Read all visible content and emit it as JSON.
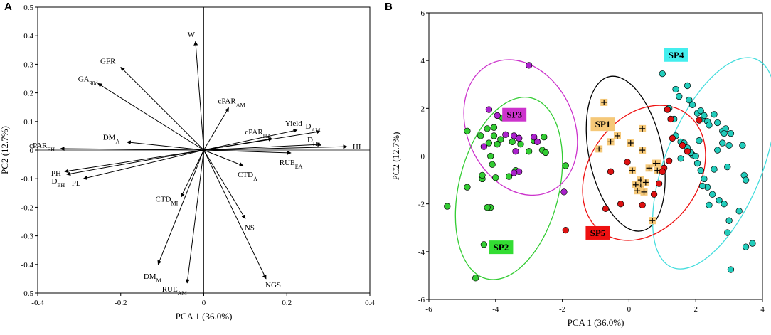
{
  "panels": {
    "a": "A",
    "b": "B"
  },
  "chart_data": [
    {
      "type": "biplot",
      "xlabel": "PCA 1 (36.0%)",
      "ylabel": "PC2 (12.7%)",
      "xlim": [
        -0.4,
        0.4
      ],
      "ylim": [
        -0.5,
        0.5
      ],
      "xticks": [
        -0.4,
        -0.2,
        0,
        0.2,
        0.4
      ],
      "yticks": [
        -0.5,
        -0.4,
        -0.3,
        -0.2,
        -0.1,
        0,
        0.1,
        0.2,
        0.3,
        0.4,
        0.5
      ],
      "xtick_labels": [
        "-0.4",
        "-0.2",
        "0",
        "0.2",
        "0.4"
      ],
      "ytick_labels": [
        "-0.5",
        "-0.4",
        "-0.3",
        "-0.2",
        "-0.1",
        "0",
        "0.1",
        "0.2",
        "0.3",
        "0.4",
        "0.5"
      ],
      "vectors": [
        {
          "base": "W",
          "sub": "",
          "x": -0.02,
          "y": 0.38
        },
        {
          "base": "GFR",
          "sub": "",
          "x": -0.2,
          "y": 0.29
        },
        {
          "base": "GA",
          "sub": "90d",
          "x": -0.255,
          "y": 0.233
        },
        {
          "base": "cPAR",
          "sub": "AM",
          "x": 0.06,
          "y": 0.148
        },
        {
          "base": "cPAR",
          "sub": "HA",
          "x": 0.165,
          "y": 0.04
        },
        {
          "base": "Yield",
          "sub": "",
          "x": 0.225,
          "y": 0.07
        },
        {
          "base": "D",
          "sub": "AM",
          "x": 0.28,
          "y": 0.065
        },
        {
          "base": "D",
          "sub": "HA",
          "x": 0.283,
          "y": 0.02
        },
        {
          "base": "HI",
          "sub": "",
          "x": 0.345,
          "y": 0.012
        },
        {
          "base": "RUE",
          "sub": "EA",
          "x": 0.21,
          "y": -0.01
        },
        {
          "base": "DM",
          "sub": "A",
          "x": -0.185,
          "y": 0.028
        },
        {
          "base": "cPAR",
          "sub": "EH",
          "x": -0.345,
          "y": 0.005
        },
        {
          "base": "PH",
          "sub": "",
          "x": -0.335,
          "y": -0.075
        },
        {
          "base": "D",
          "sub": "EH",
          "x": -0.33,
          "y": -0.085
        },
        {
          "base": "PL",
          "sub": "",
          "x": -0.29,
          "y": -0.1
        },
        {
          "base": "CTD",
          "sub": "A",
          "x": 0.095,
          "y": -0.055
        },
        {
          "base": "CTD",
          "sub": "MI",
          "x": -0.055,
          "y": -0.165
        },
        {
          "base": "NS",
          "sub": "",
          "x": 0.1,
          "y": -0.24
        },
        {
          "base": "DM",
          "sub": "M",
          "x": -0.11,
          "y": -0.4
        },
        {
          "base": "RUE",
          "sub": "AM",
          "x": -0.04,
          "y": -0.465
        },
        {
          "base": "NGS",
          "sub": "",
          "x": 0.15,
          "y": -0.45
        }
      ]
    },
    {
      "type": "scatter",
      "xlabel": "PCA 1 (36.0%)",
      "ylabel": "PC2 (12.7%)",
      "xlim": [
        -6,
        4
      ],
      "ylim": [
        -6,
        6
      ],
      "xticks": [
        -6,
        -4,
        -2,
        0,
        2,
        4
      ],
      "yticks": [
        -6,
        -4,
        -2,
        0,
        2,
        4,
        6
      ],
      "xtick_labels": [
        "-6",
        "-4",
        "-2",
        "0",
        "2",
        "4"
      ],
      "ytick_labels": [
        "-6",
        "-4",
        "-2",
        "0",
        "2",
        "4",
        "6"
      ],
      "groups": [
        {
          "name": "SP1",
          "color": "#f5c878",
          "label_bg": "#f5c878",
          "ellipse_color": "#000000",
          "marker": "plus-square",
          "ellipse": {
            "cx": -0.1,
            "cy": 0.1,
            "rx": 1.1,
            "ry": 3.3,
            "angle_deg": -12
          },
          "label_pos": [
            -1.15,
            1.35
          ],
          "x": [
            -0.75,
            -0.9,
            -0.35,
            -0.55,
            0.05,
            0.4,
            0.4,
            0.35,
            0.1,
            0.35,
            0.5,
            0.2,
            0.25,
            0.45,
            0.6,
            0.85,
            0.85,
            0.7,
            0.8
          ],
          "y": [
            2.25,
            0.3,
            0.85,
            0.6,
            0.55,
            1.15,
            0.25,
            -1.0,
            -0.6,
            -1.25,
            -1.1,
            -1.2,
            -1.45,
            -1.5,
            -0.5,
            -0.3,
            -0.6,
            -2.7,
            -0.3
          ]
        },
        {
          "name": "SP2",
          "color": "#33cc33",
          "label_bg": "#33dd33",
          "ellipse_color": "#33cc33",
          "marker": "circle",
          "ellipse": {
            "cx": -3.6,
            "cy": -1.35,
            "rx": 1.5,
            "ry": 3.9,
            "angle_deg": 14
          },
          "label_pos": [
            -4.2,
            -3.8
          ],
          "x": [
            -5.45,
            -4.85,
            -4.85,
            -4.45,
            -4.4,
            -4.1,
            -4.2,
            -4.15,
            -4.05,
            -4.25,
            -3.95,
            -3.8,
            -3.45,
            -3.5,
            -3.3,
            -3.0,
            -2.85,
            -2.55,
            -2.6,
            -2.5,
            -1.9,
            -4.0,
            -3.6,
            -3.4,
            -3.25,
            -4.35,
            -4.15,
            -4.25,
            -4.4,
            -4.6,
            -4.05,
            -3.85
          ],
          "y": [
            -2.1,
            1.05,
            -1.3,
            0.85,
            -0.95,
            -0.35,
            0.55,
            0.0,
            0.85,
            1.15,
            0.5,
            1.6,
            1.75,
            0.6,
            0.75,
            0.2,
            0.65,
            0.8,
            0.25,
            0.15,
            -0.4,
            -0.9,
            -0.85,
            -0.6,
            0.5,
            -3.7,
            -2.15,
            -2.15,
            -0.8,
            -5.1,
            1.2,
            0.7
          ]
        },
        {
          "name": "SP3",
          "color": "#aa22cc",
          "label_bg": "#cc33cc",
          "ellipse_color": "#cc33cc",
          "marker": "circle",
          "ellipse": {
            "cx": -3.25,
            "cy": 1.2,
            "rx": 1.6,
            "ry": 2.95,
            "angle_deg": -25
          },
          "label_pos": [
            -3.8,
            1.75
          ],
          "x": [
            -3.0,
            -4.2,
            -3.95,
            -3.45,
            -3.3,
            -3.7,
            -4.35,
            -3.4,
            -3.3,
            -2.75,
            -2.85,
            -3.45,
            -1.95
          ],
          "y": [
            3.8,
            1.95,
            1.7,
            0.85,
            0.75,
            0.9,
            0.4,
            0.2,
            -0.65,
            0.6,
            0.8,
            -0.7,
            -1.5
          ]
        },
        {
          "name": "SP4",
          "color": "#22ccbb",
          "label_bg": "#44eeee",
          "ellipse_color": "#44dddd",
          "marker": "circle",
          "ellipse": {
            "cx": 2.55,
            "cy": -0.3,
            "rx": 1.45,
            "ry": 4.7,
            "angle_deg": 22
          },
          "label_pos": [
            1.05,
            4.25
          ],
          "x": [
            1.0,
            1.4,
            1.5,
            1.75,
            1.8,
            1.9,
            2.05,
            2.15,
            2.2,
            2.25,
            2.35,
            2.4,
            2.55,
            2.65,
            2.8,
            2.9,
            3.0,
            3.05,
            3.4,
            3.45,
            3.5,
            3.7,
            3.5,
            3.3,
            3.0,
            2.95,
            2.85,
            2.7,
            2.5,
            2.35,
            2.25,
            2.15,
            2.05,
            1.9,
            1.75,
            1.55,
            1.4,
            1.35,
            1.55,
            1.65,
            1.85,
            2.0,
            2.2,
            2.4,
            2.55,
            2.65,
            2.8,
            2.85,
            2.95,
            3.05,
            1.2,
            2.1
          ],
          "y": [
            3.45,
            2.8,
            2.5,
            2.95,
            2.35,
            2.15,
            1.8,
            1.9,
            1.55,
            1.7,
            1.45,
            1.3,
            1.75,
            1.4,
            1.05,
            1.15,
            0.45,
            0.95,
            0.45,
            -0.8,
            -1.0,
            -3.65,
            -3.8,
            -2.3,
            -2.7,
            -3.2,
            -2.0,
            -1.85,
            -1.6,
            -1.3,
            -0.95,
            -0.6,
            -0.3,
            0.05,
            0.35,
            0.6,
            0.85,
            1.55,
            -0.1,
            0.55,
            0.15,
            0.0,
            -1.25,
            -2.05,
            -0.55,
            0.25,
            0.55,
            0.95,
            -0.45,
            -4.75,
            2.0,
            0.65
          ]
        },
        {
          "name": "SP5",
          "color": "#dd1111",
          "label_bg": "#ee1111",
          "ellipse_color": "#ee1111",
          "marker": "circle",
          "ellipse": {
            "cx": 0.45,
            "cy": -0.7,
            "rx": 1.65,
            "ry": 3.05,
            "angle_deg": 35
          },
          "label_pos": [
            -1.3,
            -3.2
          ],
          "x": [
            1.15,
            1.25,
            1.3,
            1.6,
            1.75,
            2.1,
            1.2,
            1.05,
            1.0,
            0.9,
            0.75,
            0.4,
            -0.05,
            -0.55,
            -0.7,
            -1.9,
            -0.25
          ],
          "y": [
            1.95,
            1.55,
            0.75,
            0.45,
            0.2,
            1.5,
            -0.2,
            -0.5,
            -0.65,
            -1.15,
            -1.6,
            -2.05,
            -0.25,
            -0.65,
            -2.2,
            -3.1,
            -2.0
          ]
        }
      ]
    }
  ]
}
